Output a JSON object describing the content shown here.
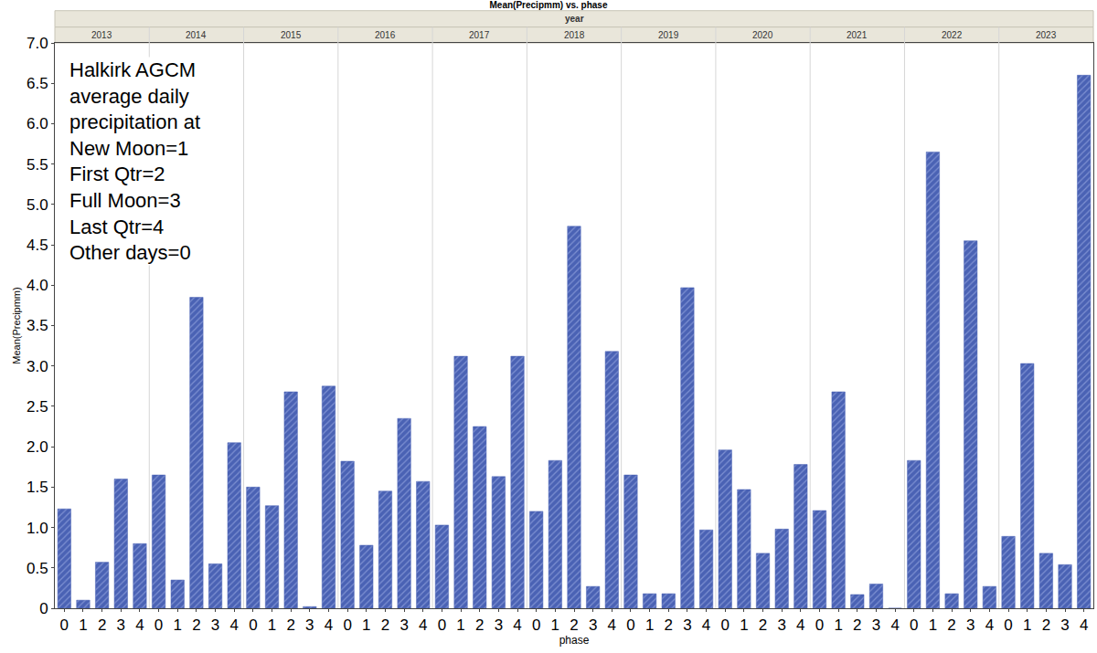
{
  "chart_data": {
    "type": "bar",
    "title": "Mean(Precipmm) vs. phase",
    "header": "year",
    "x_label": "phase",
    "y_label": "Mean(Precipmm)",
    "annotation": [
      "Halkirk AGCM",
      "average daily",
      "precipitation at",
      "New Moon=1",
      "First Qtr=2",
      "Full Moon=3",
      "Last Qtr=4",
      "Other days=0"
    ],
    "categories": [
      "0",
      "1",
      "2",
      "3",
      "4"
    ],
    "groups": [
      {
        "name": "2013",
        "values": [
          1.23,
          0.1,
          0.57,
          1.6,
          0.8
        ]
      },
      {
        "name": "2014",
        "values": [
          1.65,
          0.35,
          3.85,
          0.55,
          2.05
        ]
      },
      {
        "name": "2015",
        "values": [
          1.5,
          1.27,
          2.68,
          0.02,
          2.75
        ]
      },
      {
        "name": "2016",
        "values": [
          1.82,
          0.78,
          1.45,
          2.35,
          1.57
        ]
      },
      {
        "name": "2017",
        "values": [
          1.03,
          3.12,
          2.25,
          1.63,
          3.12
        ]
      },
      {
        "name": "2018",
        "values": [
          1.2,
          1.83,
          4.73,
          0.27,
          3.18
        ]
      },
      {
        "name": "2019",
        "values": [
          1.65,
          0.18,
          0.18,
          3.97,
          0.97
        ]
      },
      {
        "name": "2020",
        "values": [
          1.96,
          1.47,
          0.68,
          0.98,
          1.78
        ]
      },
      {
        "name": "2021",
        "values": [
          1.21,
          2.68,
          0.17,
          0.3,
          0
        ]
      },
      {
        "name": "2022",
        "values": [
          1.83,
          5.65,
          0.18,
          4.55,
          0.27
        ]
      },
      {
        "name": "2023",
        "values": [
          0.89,
          3.03,
          0.68,
          0.54,
          6.6
        ]
      }
    ],
    "color": "#4a62b4",
    "ylim": [
      0,
      7
    ],
    "yticks": [
      0,
      0.5,
      {
        "value": 1,
        "label": "1.0"
      },
      1.5,
      {
        "value": 2,
        "label": "2.0"
      },
      2.5,
      {
        "value": 3,
        "label": "3.0"
      },
      3.5,
      {
        "value": 4,
        "label": "4.0"
      },
      4.5,
      {
        "value": 5,
        "label": "5.0"
      },
      5.5,
      {
        "value": 6,
        "label": "6.0"
      },
      6.5,
      {
        "value": 7,
        "label": "7.0"
      }
    ],
    "grid": false
  }
}
